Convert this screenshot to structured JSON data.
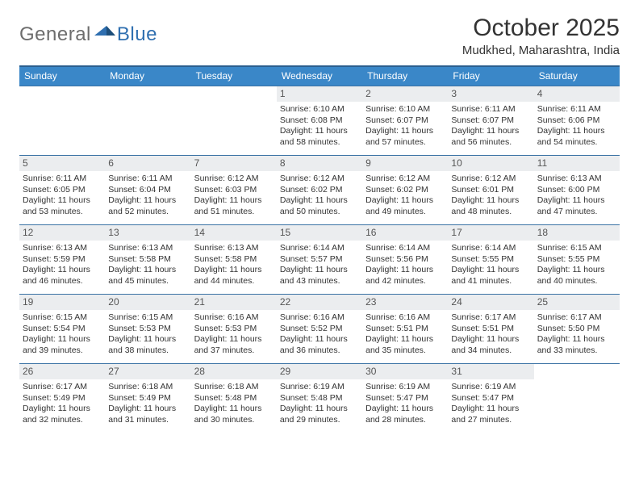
{
  "logo": {
    "general": "General",
    "blue": "Blue"
  },
  "title": "October 2025",
  "location": "Mudkhed, Maharashtra, India",
  "colors": {
    "header_bg": "#3a87c8",
    "header_border": "#2b5f8e",
    "daynum_bg": "#ebedef",
    "daynum_border": "#3a72a4",
    "text": "#333333",
    "logo_grey": "#6d6d6d",
    "logo_blue": "#2f6fb0"
  },
  "typography": {
    "title_size_pt": 22,
    "location_size_pt": 11,
    "header_size_pt": 9,
    "body_size_pt": 8
  },
  "days": [
    "Sunday",
    "Monday",
    "Tuesday",
    "Wednesday",
    "Thursday",
    "Friday",
    "Saturday"
  ],
  "weeks": [
    [
      {
        "n": "",
        "sr": "",
        "ss": "",
        "dl": ""
      },
      {
        "n": "",
        "sr": "",
        "ss": "",
        "dl": ""
      },
      {
        "n": "",
        "sr": "",
        "ss": "",
        "dl": ""
      },
      {
        "n": "1",
        "sr": "Sunrise: 6:10 AM",
        "ss": "Sunset: 6:08 PM",
        "dl": "Daylight: 11 hours and 58 minutes."
      },
      {
        "n": "2",
        "sr": "Sunrise: 6:10 AM",
        "ss": "Sunset: 6:07 PM",
        "dl": "Daylight: 11 hours and 57 minutes."
      },
      {
        "n": "3",
        "sr": "Sunrise: 6:11 AM",
        "ss": "Sunset: 6:07 PM",
        "dl": "Daylight: 11 hours and 56 minutes."
      },
      {
        "n": "4",
        "sr": "Sunrise: 6:11 AM",
        "ss": "Sunset: 6:06 PM",
        "dl": "Daylight: 11 hours and 54 minutes."
      }
    ],
    [
      {
        "n": "5",
        "sr": "Sunrise: 6:11 AM",
        "ss": "Sunset: 6:05 PM",
        "dl": "Daylight: 11 hours and 53 minutes."
      },
      {
        "n": "6",
        "sr": "Sunrise: 6:11 AM",
        "ss": "Sunset: 6:04 PM",
        "dl": "Daylight: 11 hours and 52 minutes."
      },
      {
        "n": "7",
        "sr": "Sunrise: 6:12 AM",
        "ss": "Sunset: 6:03 PM",
        "dl": "Daylight: 11 hours and 51 minutes."
      },
      {
        "n": "8",
        "sr": "Sunrise: 6:12 AM",
        "ss": "Sunset: 6:02 PM",
        "dl": "Daylight: 11 hours and 50 minutes."
      },
      {
        "n": "9",
        "sr": "Sunrise: 6:12 AM",
        "ss": "Sunset: 6:02 PM",
        "dl": "Daylight: 11 hours and 49 minutes."
      },
      {
        "n": "10",
        "sr": "Sunrise: 6:12 AM",
        "ss": "Sunset: 6:01 PM",
        "dl": "Daylight: 11 hours and 48 minutes."
      },
      {
        "n": "11",
        "sr": "Sunrise: 6:13 AM",
        "ss": "Sunset: 6:00 PM",
        "dl": "Daylight: 11 hours and 47 minutes."
      }
    ],
    [
      {
        "n": "12",
        "sr": "Sunrise: 6:13 AM",
        "ss": "Sunset: 5:59 PM",
        "dl": "Daylight: 11 hours and 46 minutes."
      },
      {
        "n": "13",
        "sr": "Sunrise: 6:13 AM",
        "ss": "Sunset: 5:58 PM",
        "dl": "Daylight: 11 hours and 45 minutes."
      },
      {
        "n": "14",
        "sr": "Sunrise: 6:13 AM",
        "ss": "Sunset: 5:58 PM",
        "dl": "Daylight: 11 hours and 44 minutes."
      },
      {
        "n": "15",
        "sr": "Sunrise: 6:14 AM",
        "ss": "Sunset: 5:57 PM",
        "dl": "Daylight: 11 hours and 43 minutes."
      },
      {
        "n": "16",
        "sr": "Sunrise: 6:14 AM",
        "ss": "Sunset: 5:56 PM",
        "dl": "Daylight: 11 hours and 42 minutes."
      },
      {
        "n": "17",
        "sr": "Sunrise: 6:14 AM",
        "ss": "Sunset: 5:55 PM",
        "dl": "Daylight: 11 hours and 41 minutes."
      },
      {
        "n": "18",
        "sr": "Sunrise: 6:15 AM",
        "ss": "Sunset: 5:55 PM",
        "dl": "Daylight: 11 hours and 40 minutes."
      }
    ],
    [
      {
        "n": "19",
        "sr": "Sunrise: 6:15 AM",
        "ss": "Sunset: 5:54 PM",
        "dl": "Daylight: 11 hours and 39 minutes."
      },
      {
        "n": "20",
        "sr": "Sunrise: 6:15 AM",
        "ss": "Sunset: 5:53 PM",
        "dl": "Daylight: 11 hours and 38 minutes."
      },
      {
        "n": "21",
        "sr": "Sunrise: 6:16 AM",
        "ss": "Sunset: 5:53 PM",
        "dl": "Daylight: 11 hours and 37 minutes."
      },
      {
        "n": "22",
        "sr": "Sunrise: 6:16 AM",
        "ss": "Sunset: 5:52 PM",
        "dl": "Daylight: 11 hours and 36 minutes."
      },
      {
        "n": "23",
        "sr": "Sunrise: 6:16 AM",
        "ss": "Sunset: 5:51 PM",
        "dl": "Daylight: 11 hours and 35 minutes."
      },
      {
        "n": "24",
        "sr": "Sunrise: 6:17 AM",
        "ss": "Sunset: 5:51 PM",
        "dl": "Daylight: 11 hours and 34 minutes."
      },
      {
        "n": "25",
        "sr": "Sunrise: 6:17 AM",
        "ss": "Sunset: 5:50 PM",
        "dl": "Daylight: 11 hours and 33 minutes."
      }
    ],
    [
      {
        "n": "26",
        "sr": "Sunrise: 6:17 AM",
        "ss": "Sunset: 5:49 PM",
        "dl": "Daylight: 11 hours and 32 minutes."
      },
      {
        "n": "27",
        "sr": "Sunrise: 6:18 AM",
        "ss": "Sunset: 5:49 PM",
        "dl": "Daylight: 11 hours and 31 minutes."
      },
      {
        "n": "28",
        "sr": "Sunrise: 6:18 AM",
        "ss": "Sunset: 5:48 PM",
        "dl": "Daylight: 11 hours and 30 minutes."
      },
      {
        "n": "29",
        "sr": "Sunrise: 6:19 AM",
        "ss": "Sunset: 5:48 PM",
        "dl": "Daylight: 11 hours and 29 minutes."
      },
      {
        "n": "30",
        "sr": "Sunrise: 6:19 AM",
        "ss": "Sunset: 5:47 PM",
        "dl": "Daylight: 11 hours and 28 minutes."
      },
      {
        "n": "31",
        "sr": "Sunrise: 6:19 AM",
        "ss": "Sunset: 5:47 PM",
        "dl": "Daylight: 11 hours and 27 minutes."
      },
      {
        "n": "",
        "sr": "",
        "ss": "",
        "dl": ""
      }
    ]
  ]
}
